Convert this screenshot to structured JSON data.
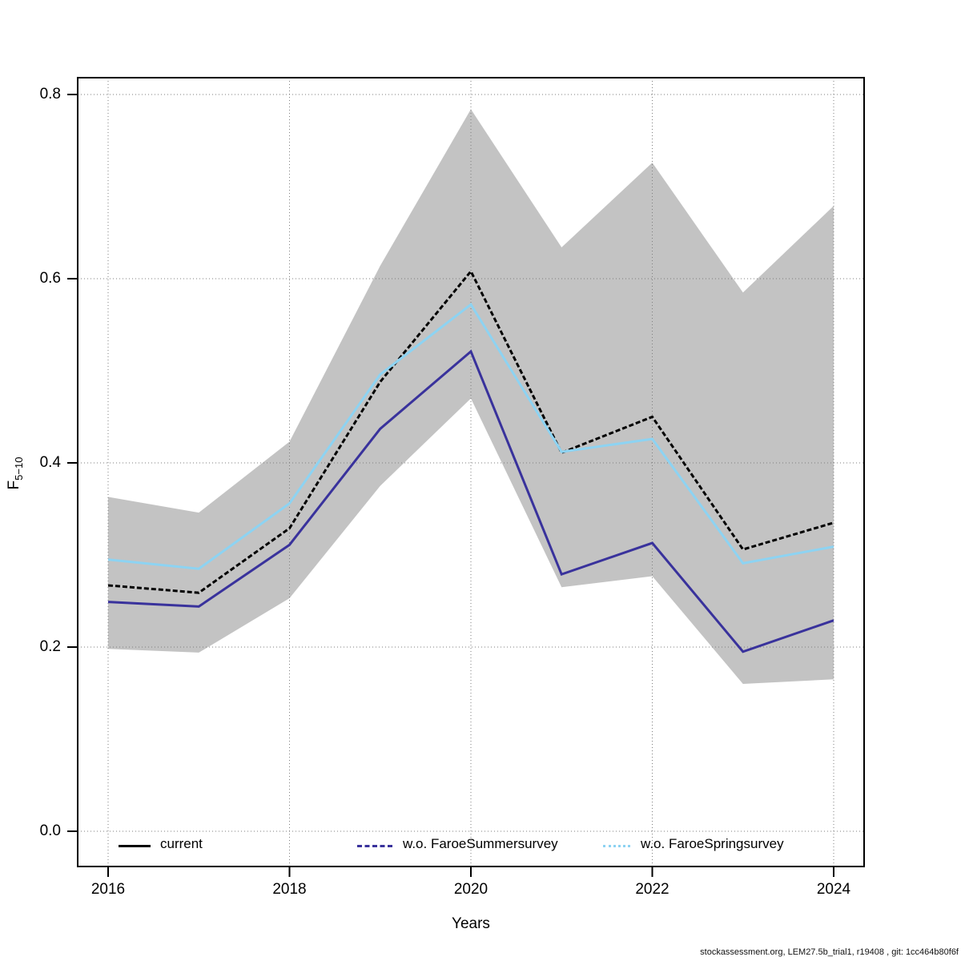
{
  "page": {
    "footer": "stockassessment.org, LEM27.5b_trial1, r19408 , git: 1cc464b80f6f"
  },
  "chart_data": {
    "type": "line",
    "title": "",
    "xlabel": "Years",
    "ylabel": "F",
    "ylabel_sub": "5−10",
    "x": [
      2016,
      2017,
      2018,
      2019,
      2020,
      2021,
      2022,
      2023,
      2024
    ],
    "xticks": [
      2016,
      2018,
      2020,
      2022,
      2024
    ],
    "xtick_labels": [
      "2016",
      "2018",
      "2020",
      "2022",
      "2024"
    ],
    "yticks": [
      0.0,
      0.2,
      0.4,
      0.6,
      0.8
    ],
    "ytick_labels": [
      "0.0",
      "0.2",
      "0.4",
      "0.6",
      "0.8"
    ],
    "xlim": [
      2015.66,
      2024.34
    ],
    "ylim": [
      -0.038,
      0.818
    ],
    "grid": true,
    "grid_style": "dotted",
    "legend_position": "bottom-inside",
    "band": {
      "upper": [
        0.363,
        0.346,
        0.423,
        0.614,
        0.784,
        0.634,
        0.726,
        0.585,
        0.679
      ],
      "lower": [
        0.198,
        0.194,
        0.253,
        0.375,
        0.47,
        0.265,
        0.277,
        0.16,
        0.165
      ],
      "color": "rgba(128,128,128,0.47)"
    },
    "series": [
      {
        "name": "current",
        "color": "#000000",
        "style": "dashed",
        "values": [
          0.267,
          0.259,
          0.329,
          0.488,
          0.608,
          0.411,
          0.45,
          0.306,
          0.335
        ]
      },
      {
        "name": "w.o. FaroeSummersurvey",
        "color": "#39329C",
        "style": "solid",
        "values": [
          0.249,
          0.244,
          0.311,
          0.437,
          0.521,
          0.279,
          0.313,
          0.195,
          0.229
        ]
      },
      {
        "name": "w.o. FaroeSpringsurvey",
        "color": "#8DD3F2",
        "style": "solid",
        "values": [
          0.295,
          0.285,
          0.356,
          0.496,
          0.572,
          0.412,
          0.426,
          0.291,
          0.309
        ]
      }
    ]
  }
}
